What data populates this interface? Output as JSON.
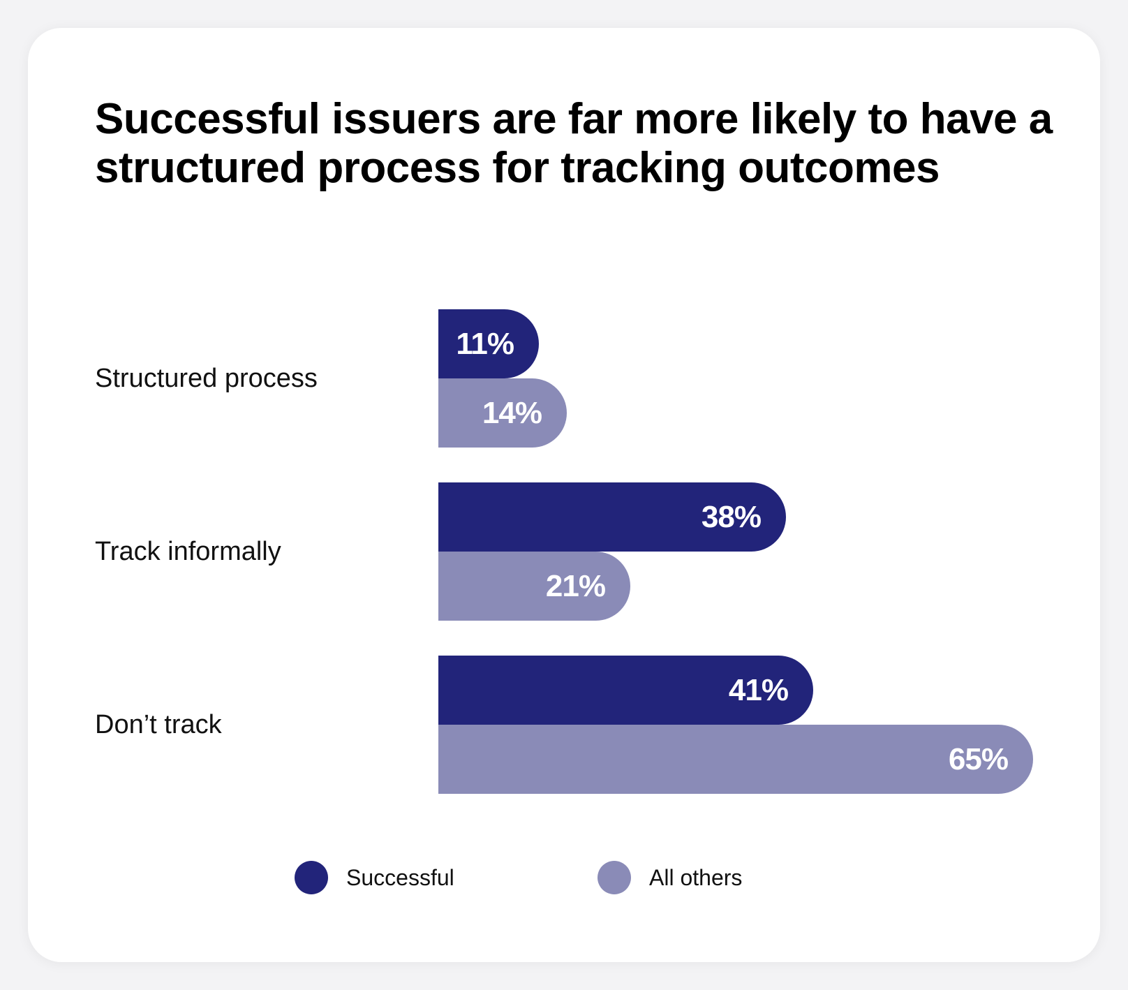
{
  "title": "Successful issuers are far more likely to have a structured process for tracking outcomes",
  "colors": {
    "successful": "#22247a",
    "all_others": "#8a8bb7"
  },
  "chart_data": {
    "type": "bar",
    "orientation": "horizontal",
    "title": "Successful issuers are far more likely to have a structured process for tracking outcomes",
    "categories": [
      "Structured process",
      "Track informally",
      "Don’t track"
    ],
    "series": [
      {
        "name": "Successful",
        "values": [
          11,
          38,
          41
        ],
        "labels": [
          "11%",
          "38%",
          "41%"
        ]
      },
      {
        "name": "All others",
        "values": [
          14,
          21,
          65
        ],
        "labels": [
          "14%",
          "21%",
          "65%"
        ]
      }
    ],
    "xlim": [
      0,
      65
    ],
    "grid": false,
    "legend_position": "bottom"
  },
  "legend": [
    {
      "label": "Successful"
    },
    {
      "label": "All others"
    }
  ]
}
